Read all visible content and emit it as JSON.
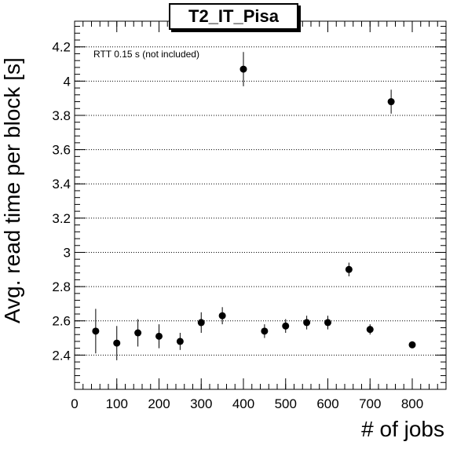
{
  "chart_data": {
    "type": "scatter",
    "title": "T2_IT_Pisa",
    "xlabel": "# of jobs",
    "ylabel": "Avg. read time per block [s]",
    "annotation": "RTT 0.15 s (not included)",
    "xlim": [
      0,
      880
    ],
    "ylim": [
      2.2,
      4.35
    ],
    "x_ticks": [
      0,
      100,
      200,
      300,
      400,
      500,
      600,
      700,
      800
    ],
    "y_ticks": [
      2.4,
      2.6,
      2.8,
      3,
      3.2,
      3.4,
      3.6,
      3.8,
      4,
      4.2
    ],
    "grid": "horizontal-dotted",
    "points": [
      {
        "x": 50,
        "y": 2.54,
        "err": 0.13
      },
      {
        "x": 100,
        "y": 2.47,
        "err": 0.1
      },
      {
        "x": 150,
        "y": 2.53,
        "err": 0.08
      },
      {
        "x": 200,
        "y": 2.51,
        "err": 0.07
      },
      {
        "x": 250,
        "y": 2.48,
        "err": 0.05
      },
      {
        "x": 300,
        "y": 2.59,
        "err": 0.06
      },
      {
        "x": 350,
        "y": 2.63,
        "err": 0.05
      },
      {
        "x": 400,
        "y": 4.07,
        "err": 0.1
      },
      {
        "x": 450,
        "y": 2.54,
        "err": 0.04
      },
      {
        "x": 500,
        "y": 2.57,
        "err": 0.04
      },
      {
        "x": 550,
        "y": 2.59,
        "err": 0.04
      },
      {
        "x": 600,
        "y": 2.59,
        "err": 0.04
      },
      {
        "x": 650,
        "y": 2.9,
        "err": 0.04
      },
      {
        "x": 700,
        "y": 2.55,
        "err": 0.03
      },
      {
        "x": 750,
        "y": 3.88,
        "err": 0.07
      },
      {
        "x": 800,
        "y": 2.46,
        "err": 0.02
      }
    ]
  }
}
